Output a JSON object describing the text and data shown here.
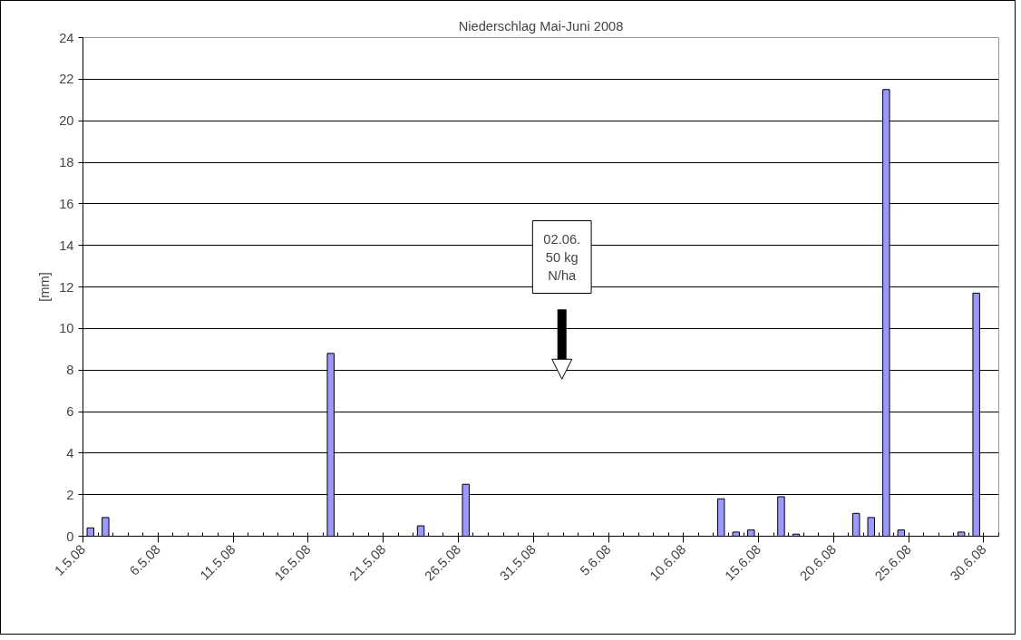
{
  "chart_data": {
    "type": "bar",
    "title": "Niederschlag Mai-Juni 2008",
    "ylabel": "[mm]",
    "categories": [
      "1.5.08",
      null,
      null,
      null,
      null,
      "6.5.08",
      null,
      null,
      null,
      null,
      "11.5.08",
      null,
      null,
      null,
      null,
      "16.5.08",
      null,
      null,
      null,
      null,
      "21.5.08",
      null,
      null,
      null,
      null,
      "26.5.08",
      null,
      null,
      null,
      null,
      "31.5.08",
      null,
      null,
      null,
      null,
      "5.6.08",
      null,
      null,
      null,
      null,
      "10.6.08",
      null,
      null,
      null,
      null,
      "15.6.08",
      null,
      null,
      null,
      null,
      "20.6.08",
      null,
      null,
      null,
      null,
      "25.6.08",
      null,
      null,
      null,
      null,
      "30.6.08"
    ],
    "values": [
      0.4,
      0.9,
      null,
      null,
      null,
      null,
      null,
      null,
      null,
      null,
      null,
      null,
      null,
      null,
      null,
      null,
      8.8,
      null,
      null,
      null,
      null,
      null,
      0.5,
      null,
      null,
      2.5,
      null,
      null,
      null,
      null,
      null,
      null,
      null,
      null,
      null,
      null,
      null,
      null,
      null,
      null,
      null,
      null,
      1.8,
      0.2,
      0.3,
      null,
      1.9,
      0.1,
      null,
      null,
      null,
      1.1,
      0.9,
      21.5,
      0.3,
      null,
      null,
      null,
      0.2,
      11.7,
      null
    ],
    "color": "#9999ff",
    "ylim": [
      0,
      24
    ],
    "yticks": [
      0,
      2,
      4,
      6,
      8,
      10,
      12,
      14,
      16,
      18,
      20,
      22,
      24
    ],
    "grid": "y",
    "annotations": [
      "02.06.\n50 kg\nN/ha"
    ]
  }
}
